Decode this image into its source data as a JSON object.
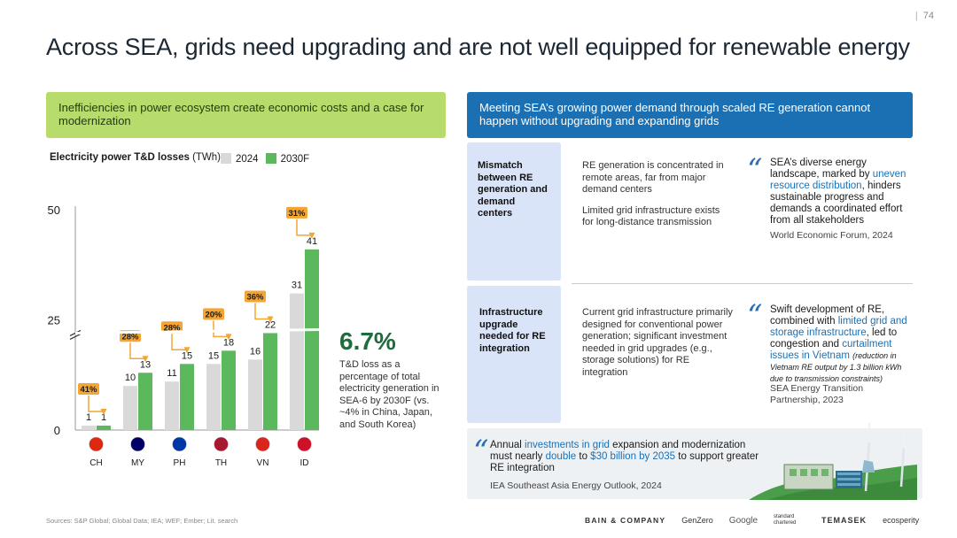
{
  "page": {
    "number": "74",
    "separator": "|",
    "title": "Across SEA, grids need upgrading and are not well equipped for renewable energy"
  },
  "left_banner": "Inefficiencies in power ecosystem create economic costs and a case for modernization",
  "right_banner": "Meeting SEA’s growing power demand through scaled RE generation cannot happen without upgrading and expanding grids",
  "chart_caption": {
    "bold": "Electricity power T&D losses",
    "unit": " (TWh)"
  },
  "legend": [
    {
      "label": "2024",
      "color": "#d9d9d9"
    },
    {
      "label": "2030F",
      "color": "#5cb85c"
    }
  ],
  "chart_data": {
    "type": "bar",
    "title": "Electricity power T&D losses (TWh)",
    "categories": [
      "CH",
      "MY",
      "PH",
      "TH",
      "VN",
      "ID"
    ],
    "series": [
      {
        "name": "2024",
        "values": [
          1,
          10,
          11,
          15,
          16,
          31
        ],
        "color": "#d9d9d9"
      },
      {
        "name": "2030F",
        "values": [
          1,
          13,
          15,
          18,
          22,
          41
        ],
        "color": "#5cb85c"
      }
    ],
    "growth_labels": [
      "41%",
      "28%",
      "28%",
      "20%",
      "36%",
      "31%"
    ],
    "y_ticks": [
      "0",
      "25",
      "50"
    ],
    "ylim": [
      0,
      50
    ],
    "axis_break": true
  },
  "stat": {
    "value": "6.7%",
    "description": "T&D loss as a percentage of total electricity generation in SEA-6 by 2030F (vs. ~4% in China, Japan, and South Korea)"
  },
  "rows": [
    {
      "heading": "Mismatch between RE generation and demand centers",
      "details": [
        "RE generation is concentrated in remote areas, far from major demand centers",
        "Limited grid infrastructure exists for long-distance transmission"
      ],
      "quote_parts": [
        "SEA’s diverse energy landscape, marked by ",
        "uneven resource distribution",
        ", hinders sustainable progress and demands a coordinated effort from all stakeholders"
      ],
      "source": "World Economic Forum, 2024"
    },
    {
      "heading": "Infrastructure upgrade needed for RE integration",
      "details": [
        "Current grid infrastructure primarily designed for conventional power generation; significant investment needed in grid upgrades (e.g., storage solutions) for RE integration"
      ],
      "quote_parts": [
        "Swift development of RE, combined with ",
        "limited grid and storage infrastructure",
        ", led to congestion and ",
        "curtailment issues in Vietnam",
        " "
      ],
      "quote_note": "(reduction in Vietnam RE output by 1.3 billion kWh due to transmission constraints)",
      "source": "SEA Energy Transition Partnership, 2023"
    }
  ],
  "bottom": {
    "parts": [
      "Annual ",
      "investments in grid",
      " expansion and modernization must nearly ",
      "double",
      " to ",
      "$30 billion by 2035",
      " to support greater RE integration"
    ],
    "source": "IEA Southeast Asia Energy Outlook, 2024"
  },
  "footer": {
    "sources": "Sources: S&P Global; Global Data; IEA; WEF; Ember; Lit. search",
    "logos": [
      "BAIN & COMPANY",
      "GenZero",
      "Google",
      "standard chartered",
      "TEMASEK",
      "ecosperity"
    ]
  },
  "colors": {
    "green_banner": "#b8dc6b",
    "blue_banner": "#1b70b4",
    "bar_2030": "#5cb85c",
    "bar_2024": "#d9d9d9",
    "growth_badge": "#f4a534"
  }
}
